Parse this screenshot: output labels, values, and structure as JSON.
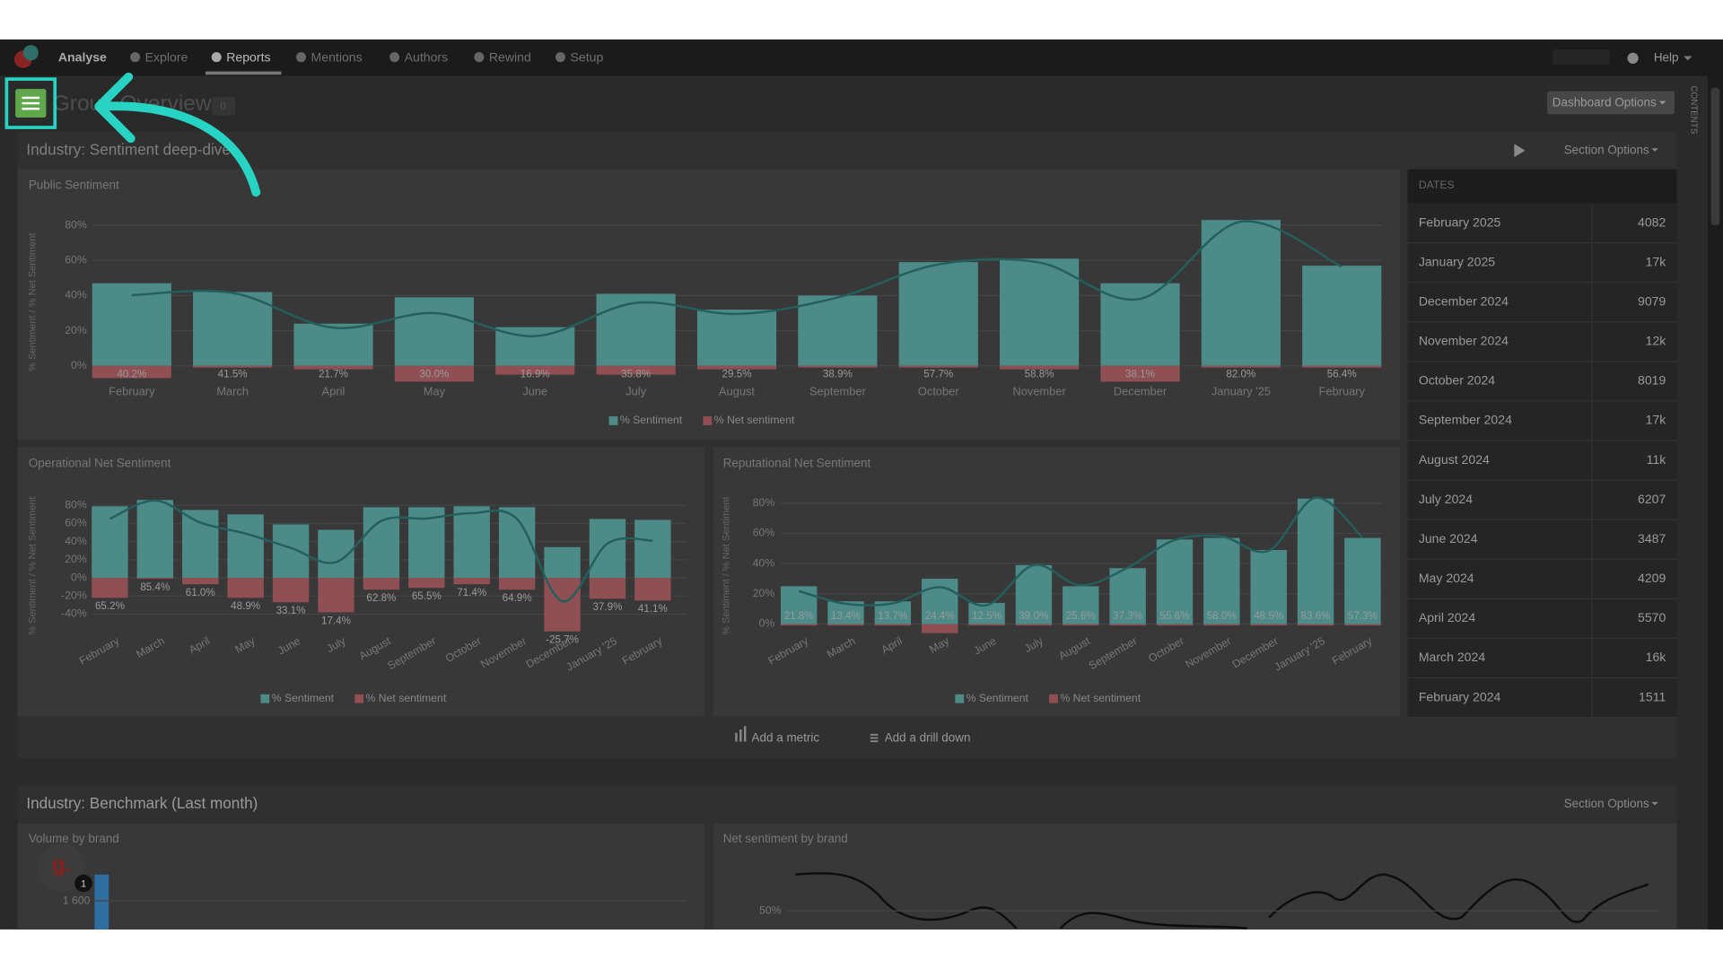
{
  "nav": {
    "items": [
      "Analyse",
      "Explore",
      "Reports",
      "Mentions",
      "Authors",
      "Rewind",
      "Setup"
    ],
    "help": "Help"
  },
  "page": {
    "title": "Group Overview",
    "badge": "0",
    "dashboard_options": "Dashboard Options",
    "contents": "CONTENTS"
  },
  "sections": [
    {
      "title": "Industry: Sentiment deep-dive",
      "options": "Section Options"
    },
    {
      "title": "Industry: Benchmark (Last month)",
      "options": "Section Options"
    }
  ],
  "charts": [
    {
      "type": "bar",
      "title": "Public Sentiment",
      "y_label": "% Sentiment / % Net Sentiment",
      "categories": [
        "February",
        "March",
        "April",
        "May",
        "June",
        "July",
        "August",
        "September",
        "October",
        "November",
        "December",
        "January '25",
        "February"
      ],
      "ylim": [
        -10,
        90
      ],
      "yticks": [
        {
          "value": 0,
          "label": "0%"
        },
        {
          "value": 20,
          "label": "20%"
        },
        {
          "value": 40,
          "label": "40%"
        },
        {
          "value": 60,
          "label": "60%"
        },
        {
          "value": 80,
          "label": "80%"
        }
      ],
      "series": [
        {
          "name": "% Sentiment",
          "color": "#4d8b89",
          "values": [
            47,
            42,
            24,
            39,
            22,
            41,
            32,
            40,
            59,
            61,
            47,
            83,
            57
          ]
        },
        {
          "name": "% Net sentiment",
          "color": "#8f4f53",
          "values": [
            -7,
            -1,
            -2,
            -9,
            -5,
            -5,
            -2,
            -1,
            -1,
            -2,
            -9,
            -1,
            -1
          ]
        },
        {
          "type": "line",
          "color": "#235f5d",
          "values": [
            40.2,
            41.5,
            21.7,
            30.0,
            16.9,
            35.8,
            29.5,
            38.9,
            57.7,
            58.8,
            38.1,
            82.0,
            56.4
          ],
          "value_labels": [
            "40.2%",
            "41.5%",
            "21.7%",
            "30.0%",
            "16.9%",
            "35.8%",
            "29.5%",
            "38.9%",
            "57.7%",
            "58.8%",
            "38.1%",
            "82.0%",
            "56.4%"
          ]
        }
      ]
    },
    {
      "type": "bar",
      "title": "Operational Net Sentiment",
      "y_label": "% Sentiment / % Net Sentiment",
      "categories": [
        "February",
        "March",
        "April",
        "May",
        "June",
        "July",
        "August",
        "September",
        "October",
        "November",
        "December",
        "January '25",
        "February"
      ],
      "ylim": [
        -60,
        90
      ],
      "yticks": [
        {
          "value": -40,
          "label": "-40%"
        },
        {
          "value": -20,
          "label": "-20%"
        },
        {
          "value": 0,
          "label": "0%"
        },
        {
          "value": 20,
          "label": "20%"
        },
        {
          "value": 40,
          "label": "40%"
        },
        {
          "value": 60,
          "label": "60%"
        },
        {
          "value": 80,
          "label": "80%"
        }
      ],
      "series": [
        {
          "name": "% Sentiment",
          "color": "#4d8b89",
          "values": [
            79,
            86,
            75,
            70,
            59,
            53,
            78,
            78,
            79,
            78,
            34,
            65,
            64
          ]
        },
        {
          "name": "% Net sentiment",
          "color": "#8f4f53",
          "values": [
            -22,
            -1,
            -7,
            -22,
            -27,
            -38,
            -13,
            -11,
            -7,
            -13,
            -59,
            -23,
            -25
          ]
        },
        {
          "type": "line",
          "color": "#235f5d",
          "values": [
            65.2,
            85.4,
            61.0,
            48.9,
            33.1,
            17.4,
            62.8,
            65.5,
            71.4,
            64.9,
            -25.7,
            37.9,
            41.1
          ],
          "value_labels": [
            "65.2%",
            "85.4%",
            "61.0%",
            "48.9%",
            "33.1%",
            "17.4%",
            "62.8%",
            "65.5%",
            "71.4%",
            "64.9%",
            "-25.7%",
            "37.9%",
            "41.1%"
          ]
        }
      ]
    },
    {
      "type": "bar",
      "title": "Reputational Net Sentiment",
      "y_label": "% Sentiment / % Net Sentiment",
      "categories": [
        "February",
        "March",
        "April",
        "May",
        "June",
        "July",
        "August",
        "September",
        "October",
        "November",
        "December",
        "January '25",
        "February"
      ],
      "ylim": [
        -10,
        90
      ],
      "yticks": [
        {
          "value": 0,
          "label": "0%"
        },
        {
          "value": 20,
          "label": "20%"
        },
        {
          "value": 40,
          "label": "40%"
        },
        {
          "value": 60,
          "label": "60%"
        },
        {
          "value": 80,
          "label": "80%"
        }
      ],
      "series": [
        {
          "name": "% Sentiment",
          "color": "#4d8b89",
          "values": [
            25,
            15,
            15,
            30,
            14,
            39,
            25,
            37,
            56,
            57,
            49,
            83,
            57
          ]
        },
        {
          "name": "% Net sentiment",
          "color": "#8f4f53",
          "values": [
            -1,
            -1,
            -1,
            -6,
            -1,
            -1,
            -1,
            -1,
            -1,
            -1,
            -1,
            -1,
            -1
          ]
        },
        {
          "type": "line",
          "color": "#235f5d",
          "values": [
            21.8,
            13.4,
            13.7,
            24.4,
            12.5,
            39.0,
            25.6,
            37.3,
            55.6,
            58.0,
            48.5,
            83.6,
            57.3
          ],
          "value_labels": [
            "21.8%",
            "13.4%",
            "13.7%",
            "24.4%",
            "12.5%",
            "39.0%",
            "25.6%",
            "37.3%",
            "55.6%",
            "58.0%",
            "48.5%",
            "83.6%",
            "57.3%"
          ]
        }
      ]
    }
  ],
  "dates_table": {
    "header": "DATES",
    "rows": [
      [
        "February 2025",
        "4082"
      ],
      [
        "January 2025",
        "17k"
      ],
      [
        "December 2024",
        "9079"
      ],
      [
        "November 2024",
        "12k"
      ],
      [
        "October 2024",
        "8019"
      ],
      [
        "September 2024",
        "17k"
      ],
      [
        "August 2024",
        "11k"
      ],
      [
        "July 2024",
        "6207"
      ],
      [
        "June 2024",
        "3487"
      ],
      [
        "May 2024",
        "4209"
      ],
      [
        "April 2024",
        "5570"
      ],
      [
        "March 2024",
        "16k"
      ],
      [
        "February 2024",
        "1511"
      ]
    ]
  },
  "actions": [
    "Add a metric",
    "Add a drill down"
  ],
  "benchmark_charts": [
    {
      "title": "Volume by brand",
      "yticks": [
        {
          "value": 1600,
          "label": "1 600"
        }
      ]
    },
    {
      "title": "Net sentiment by brand",
      "yticks": [
        {
          "value": 50,
          "label": "50%"
        }
      ]
    }
  ],
  "assistant": {
    "logo": "g.",
    "notifications": "1"
  }
}
